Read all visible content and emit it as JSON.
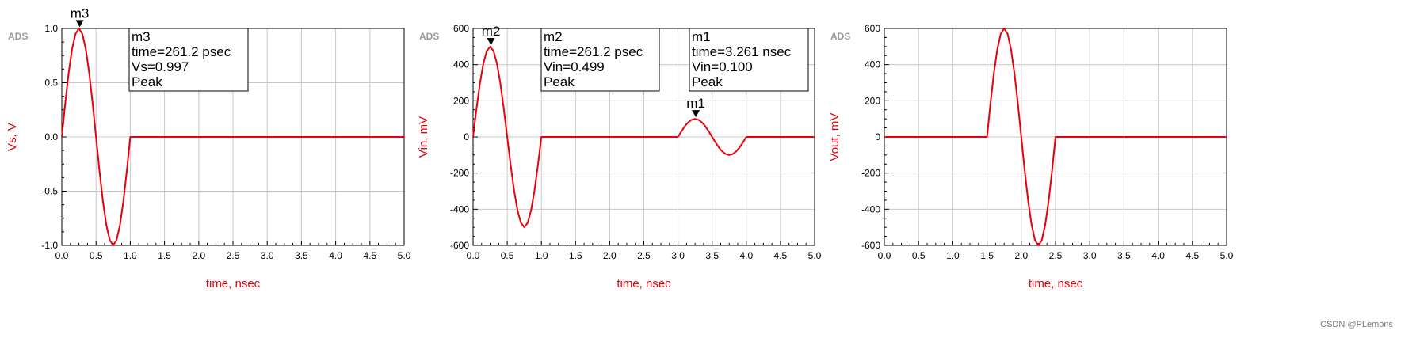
{
  "colors": {
    "trace": "#e8000b",
    "grid": "#c8c8c8",
    "frame": "#000000",
    "logo": "#9a9a9a"
  },
  "watermark": "CSDN @PLemons",
  "chart_data": [
    {
      "type": "line",
      "logo": "ADS",
      "xlabel": "time, nsec",
      "ylabel": "Vs, V",
      "xlim": [
        0,
        5
      ],
      "ylim": [
        -1,
        1
      ],
      "x_ticks": [
        0,
        0.5,
        1,
        1.5,
        2,
        2.5,
        3,
        3.5,
        4,
        4.5,
        5
      ],
      "x_tick_labels": [
        "0.0",
        "0.5",
        "1.0",
        "1.5",
        "2.0",
        "2.5",
        "3.0",
        "3.5",
        "4.0",
        "4.5",
        "5.0"
      ],
      "y_ticks": [
        -1,
        -0.5,
        0,
        0.5,
        1
      ],
      "y_tick_labels": [
        "-1.0",
        "-0.5",
        "0.0",
        "0.5",
        "1.0"
      ],
      "grid": true,
      "series": [
        {
          "x": [
            0,
            0.05,
            0.1,
            0.15,
            0.2,
            0.25,
            0.3,
            0.35,
            0.4,
            0.45,
            0.5,
            0.55,
            0.6,
            0.65,
            0.7,
            0.75,
            0.8,
            0.85,
            0.9,
            0.95,
            1.0,
            1.5,
            2.0,
            2.5,
            3.0,
            3.5,
            4.0,
            4.5,
            5.0
          ],
          "y": [
            0,
            0.31,
            0.59,
            0.81,
            0.95,
            1.0,
            0.95,
            0.81,
            0.59,
            0.31,
            0,
            -0.31,
            -0.59,
            -0.81,
            -0.95,
            -1.0,
            -0.95,
            -0.81,
            -0.59,
            -0.31,
            0,
            0,
            0,
            0,
            0,
            0,
            0,
            0,
            0
          ]
        }
      ],
      "markers": [
        {
          "name": "m3",
          "x": 0.2612,
          "y": 0.997
        }
      ],
      "readouts": [
        {
          "lines": [
            "m3",
            "time=261.2 psec",
            "Vs=0.997",
            "Peak"
          ]
        }
      ]
    },
    {
      "type": "line",
      "logo": "ADS",
      "xlabel": "time, nsec",
      "ylabel": "Vin, mV",
      "xlim": [
        0,
        5
      ],
      "ylim": [
        -600,
        600
      ],
      "x_ticks": [
        0,
        0.5,
        1,
        1.5,
        2,
        2.5,
        3,
        3.5,
        4,
        4.5,
        5
      ],
      "x_tick_labels": [
        "0.0",
        "0.5",
        "1.0",
        "1.5",
        "2.0",
        "2.5",
        "3.0",
        "3.5",
        "4.0",
        "4.5",
        "5.0"
      ],
      "y_ticks": [
        -600,
        -400,
        -200,
        0,
        200,
        400,
        600
      ],
      "y_tick_labels": [
        "-600",
        "-400",
        "-200",
        "0",
        "200",
        "400",
        "600"
      ],
      "grid": true,
      "series": [
        {
          "x": [
            0,
            0.05,
            0.1,
            0.15,
            0.2,
            0.25,
            0.3,
            0.35,
            0.4,
            0.45,
            0.5,
            0.55,
            0.6,
            0.65,
            0.7,
            0.75,
            0.8,
            0.85,
            0.9,
            0.95,
            1.0,
            1.5,
            2.0,
            2.5,
            3.0,
            3.05,
            3.1,
            3.15,
            3.2,
            3.25,
            3.3,
            3.35,
            3.4,
            3.45,
            3.5,
            3.55,
            3.6,
            3.65,
            3.7,
            3.75,
            3.8,
            3.85,
            3.9,
            3.95,
            4.0,
            4.5,
            5.0
          ],
          "y": [
            0,
            155,
            295,
            405,
            475,
            499,
            475,
            405,
            295,
            155,
            0,
            -155,
            -295,
            -405,
            -475,
            -499,
            -475,
            -405,
            -295,
            -155,
            0,
            0,
            0,
            0,
            0,
            31,
            59,
            81,
            95,
            100,
            95,
            81,
            59,
            31,
            0,
            -31,
            -59,
            -81,
            -95,
            -100,
            -95,
            -81,
            -59,
            -31,
            0,
            0,
            0
          ]
        }
      ],
      "markers": [
        {
          "name": "m2",
          "x": 0.2612,
          "y": 499
        },
        {
          "name": "m1",
          "x": 3.261,
          "y": 100
        }
      ],
      "readouts": [
        {
          "lines": [
            "m2",
            "time=261.2 psec",
            "Vin=0.499",
            "Peak"
          ]
        },
        {
          "lines": [
            "m1",
            "time=3.261 nsec",
            "Vin=0.100",
            "Peak"
          ]
        }
      ]
    },
    {
      "type": "line",
      "logo": "ADS",
      "xlabel": "time, nsec",
      "ylabel": "Vout, mV",
      "xlim": [
        0,
        5
      ],
      "ylim": [
        -600,
        600
      ],
      "x_ticks": [
        0,
        0.5,
        1,
        1.5,
        2,
        2.5,
        3,
        3.5,
        4,
        4.5,
        5
      ],
      "x_tick_labels": [
        "0.0",
        "0.5",
        "1.0",
        "1.5",
        "2.0",
        "2.5",
        "3.0",
        "3.5",
        "4.0",
        "4.5",
        "5.0"
      ],
      "y_ticks": [
        -600,
        -400,
        -200,
        0,
        200,
        400,
        600
      ],
      "y_tick_labels": [
        "-600",
        "-400",
        "-200",
        "0",
        "200",
        "400",
        "600"
      ],
      "grid": true,
      "series": [
        {
          "x": [
            0,
            0.5,
            1.0,
            1.5,
            1.55,
            1.6,
            1.65,
            1.7,
            1.75,
            1.8,
            1.85,
            1.9,
            1.95,
            2.0,
            2.05,
            2.1,
            2.15,
            2.2,
            2.25,
            2.3,
            2.35,
            2.4,
            2.45,
            2.5,
            3.0,
            3.5,
            4.0,
            4.5,
            5.0
          ],
          "y": [
            0,
            0,
            0,
            0,
            186,
            353,
            485,
            571,
            600,
            571,
            485,
            353,
            186,
            0,
            -186,
            -353,
            -485,
            -571,
            -600,
            -571,
            -485,
            -353,
            -186,
            0,
            0,
            0,
            0,
            0,
            0
          ]
        }
      ],
      "markers": [],
      "readouts": []
    }
  ]
}
